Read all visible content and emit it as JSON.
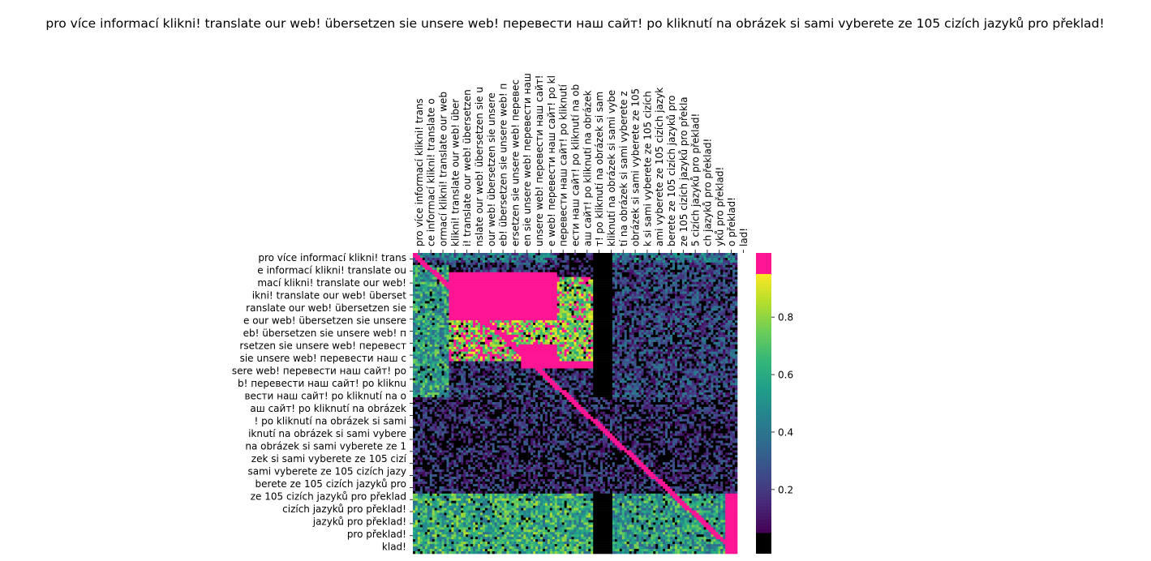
{
  "chart_data": {
    "type": "heatmap",
    "title": "pro více informací klikni! translate our web! übersetzen sie unsere web! перевести наш сайт! po kliknutí na obrázek si sami vyberete ze 105 cizích jazyků pro překlad!",
    "xlabel": "",
    "ylabel": "",
    "x_axis_position": "top",
    "x_tick_labels": [
      "pro více informací klikni! trans",
      "ce informací klikni! translate o",
      "ormací klikni! translate our web",
      " klikni! translate our web! über",
      "i! translate our web! übersetzen",
      "nslate our web! übersetzen sie u",
      " our web! übersetzen sie unsere ",
      "eb! übersetzen sie unsere web! п",
      "ersetzen sie unsere web! перевес",
      "en sie unsere web! перевести наш",
      " unsere web! перевести наш сайт!",
      "e web! перевести наш сайт! po kl",
      " перевести наш сайт! po kliknutí",
      "ести наш сайт! po kliknutí na ob",
      "аш сайт! po kliknutí na obrázek ",
      "т! po kliknutí na obrázek si sam",
      "kliknutí na obrázek si sami vybe",
      "tí na obrázek si sami vyberete z",
      "obrázek si sami vyberete ze 105 ",
      "k si sami vyberete ze 105 cizích",
      "ami vyberete ze 105 cizích jazyk",
      "berete ze 105 cizích jazyků pro ",
      " ze 105 cizích jazyků pro překla",
      "5 cizích jazyků pro překlad!",
      "ch jazyků pro překlad!",
      "yků pro překlad!",
      "o překlad!",
      "lad!"
    ],
    "y_tick_labels": [
      "pro více informací klikni! trans",
      "e informací klikni! translate ou",
      "mací klikni! translate our web! ",
      "ikni! translate our web! überset",
      "ranslate our web! übersetzen sie",
      "e our web! übersetzen sie unsere",
      "eb! übersetzen sie unsere web! п",
      "rsetzen sie unsere web! перевест",
      " sie unsere web! перевести наш с",
      "sere web! перевести наш сайт! po",
      "b! перевести наш сайт! po kliknu",
      "вести наш сайт! po kliknutí na o",
      "аш сайт! po kliknutí na obrázek ",
      "! po kliknutí na obrázek si sami",
      "iknutí na obrázek si sami vybere",
      "na obrázek si sami vyberete ze 1",
      "zek si sami vyberete ze 105 cizí",
      "sami vyberete ze 105 cizích jazy",
      "berete ze 105 cizích jazyků pro ",
      " ze 105 cizích jazyků pro překlad",
      "cizích jazyků pro překlad!",
      "jazyků pro překlad!",
      "pro překlad!",
      "klad!"
    ],
    "n_cols": 135,
    "n_rows": 125,
    "x_label_start_index": 0,
    "x_label_step": 5,
    "y_label_start_index": 0,
    "y_label_step": 5,
    "value_range": [
      0,
      1
    ],
    "colorbar": {
      "ticks": [
        0.2,
        0.4,
        0.6,
        0.8
      ],
      "under_color": "#000000",
      "over_color": "#ff1493",
      "low_threshold": 0.05,
      "high_threshold": 0.95,
      "colormap": "viridis"
    },
    "regions": [
      {
        "rows": [
          0,
          4
        ],
        "cols": [
          0,
          135
        ],
        "value": 0.35,
        "description_value": "top band low-mid"
      },
      {
        "rows": [
          5,
          60
        ],
        "cols": [
          0,
          15
        ],
        "value": 0.55
      },
      {
        "rows": [
          8,
          28
        ],
        "cols": [
          15,
          60
        ],
        "value": 1.0
      },
      {
        "rows": [
          28,
          45
        ],
        "cols": [
          15,
          75
        ],
        "value": 0.85
      },
      {
        "rows": [
          38,
          48
        ],
        "cols": [
          45,
          75
        ],
        "value": 1.0
      },
      {
        "rows": [
          5,
          45
        ],
        "cols": [
          60,
          75
        ],
        "value": 0.8
      },
      {
        "rows": [
          0,
          10
        ],
        "cols": [
          60,
          75
        ],
        "value": 0.05
      },
      {
        "rows": [
          0,
          125
        ],
        "cols": [
          75,
          83
        ],
        "value": 0.02
      },
      {
        "rows": [
          5,
          60
        ],
        "cols": [
          83,
          135
        ],
        "value": 0.2
      },
      {
        "rows": [
          60,
          100
        ],
        "cols": [
          0,
          135
        ],
        "value": 0.1
      },
      {
        "rows": [
          100,
          125
        ],
        "cols": [
          0,
          75
        ],
        "value": 0.6
      },
      {
        "rows": [
          100,
          125
        ],
        "cols": [
          83,
          135
        ],
        "value": 0.55
      },
      {
        "rows": [
          100,
          125
        ],
        "cols": [
          130,
          135
        ],
        "value": 1.0
      }
    ],
    "diagonal_value": 1.0
  }
}
